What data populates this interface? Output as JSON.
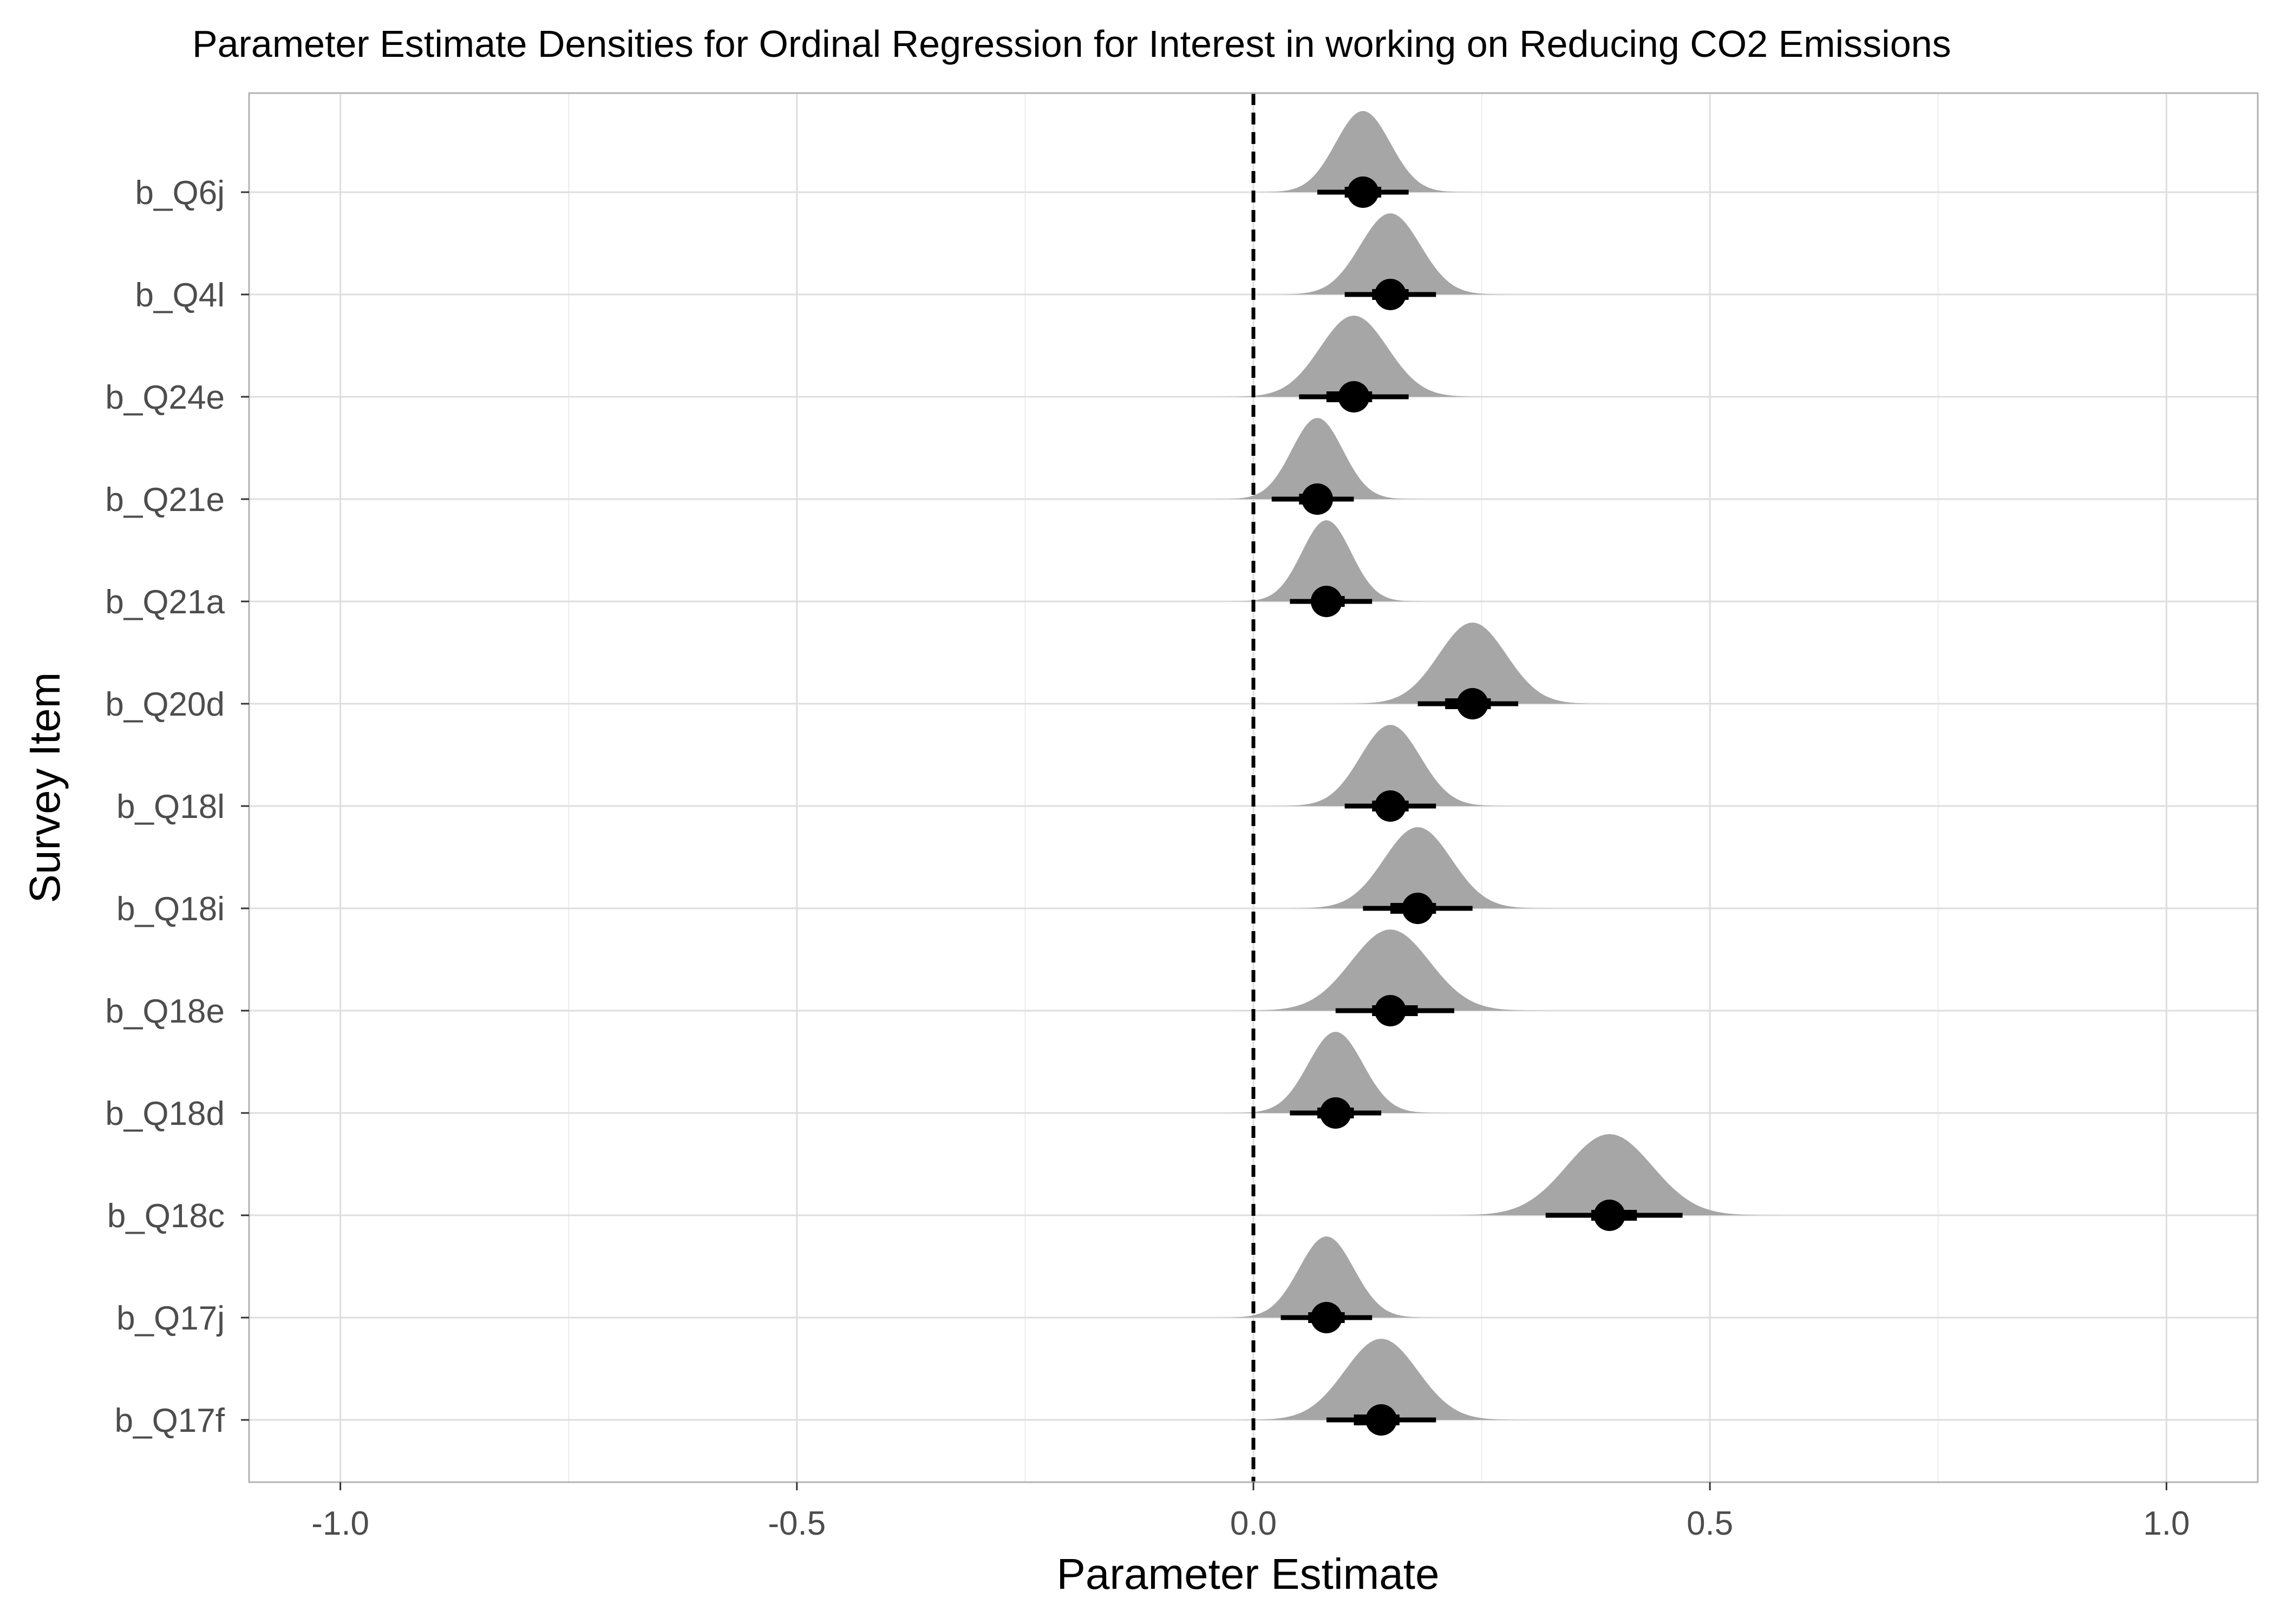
{
  "chart_data": {
    "type": "density",
    "title": "Parameter Estimate Densities for Ordinal Regression for Interest in working on Reducing CO2 Emissions",
    "xlabel": "Parameter Estimate",
    "ylabel": "Survey Item",
    "xlim": [
      -1.1,
      1.1
    ],
    "x_ticks": [
      -1.0,
      -0.5,
      0.0,
      0.5,
      1.0
    ],
    "x_tick_labels": [
      "-1.0",
      "-0.5",
      "0.0",
      "0.5",
      "1.0"
    ],
    "reference_line": 0.0,
    "grid": true,
    "colors": {
      "density": "#a6a6a6",
      "point": "#000000",
      "grid": "#dedede",
      "panel_border": "#b3b3b3"
    },
    "items": [
      {
        "name": "b_Q6j",
        "estimate": 0.12,
        "ci_inner": [
          0.1,
          0.14
        ],
        "ci_outer": [
          0.07,
          0.17
        ],
        "sd": 0.03
      },
      {
        "name": "b_Q4l",
        "estimate": 0.15,
        "ci_inner": [
          0.13,
          0.17
        ],
        "ci_outer": [
          0.1,
          0.2
        ],
        "sd": 0.033
      },
      {
        "name": "b_Q24e",
        "estimate": 0.11,
        "ci_inner": [
          0.08,
          0.13
        ],
        "ci_outer": [
          0.05,
          0.17
        ],
        "sd": 0.037
      },
      {
        "name": "b_Q21e",
        "estimate": 0.07,
        "ci_inner": [
          0.05,
          0.08
        ],
        "ci_outer": [
          0.02,
          0.11
        ],
        "sd": 0.028
      },
      {
        "name": "b_Q21a",
        "estimate": 0.08,
        "ci_inner": [
          0.07,
          0.1
        ],
        "ci_outer": [
          0.04,
          0.13
        ],
        "sd": 0.027
      },
      {
        "name": "b_Q20d",
        "estimate": 0.24,
        "ci_inner": [
          0.21,
          0.26
        ],
        "ci_outer": [
          0.18,
          0.29
        ],
        "sd": 0.037
      },
      {
        "name": "b_Q18l",
        "estimate": 0.15,
        "ci_inner": [
          0.13,
          0.17
        ],
        "ci_outer": [
          0.1,
          0.2
        ],
        "sd": 0.033
      },
      {
        "name": "b_Q18i",
        "estimate": 0.18,
        "ci_inner": [
          0.15,
          0.2
        ],
        "ci_outer": [
          0.12,
          0.24
        ],
        "sd": 0.037
      },
      {
        "name": "b_Q18e",
        "estimate": 0.15,
        "ci_inner": [
          0.13,
          0.18
        ],
        "ci_outer": [
          0.09,
          0.22
        ],
        "sd": 0.043
      },
      {
        "name": "b_Q18d",
        "estimate": 0.09,
        "ci_inner": [
          0.07,
          0.11
        ],
        "ci_outer": [
          0.04,
          0.14
        ],
        "sd": 0.03
      },
      {
        "name": "b_Q18c",
        "estimate": 0.39,
        "ci_inner": [
          0.37,
          0.42
        ],
        "ci_outer": [
          0.32,
          0.47
        ],
        "sd": 0.047
      },
      {
        "name": "b_Q17j",
        "estimate": 0.08,
        "ci_inner": [
          0.06,
          0.1
        ],
        "ci_outer": [
          0.03,
          0.13
        ],
        "sd": 0.03
      },
      {
        "name": "b_Q17f",
        "estimate": 0.14,
        "ci_inner": [
          0.11,
          0.16
        ],
        "ci_outer": [
          0.08,
          0.2
        ],
        "sd": 0.04
      }
    ]
  }
}
